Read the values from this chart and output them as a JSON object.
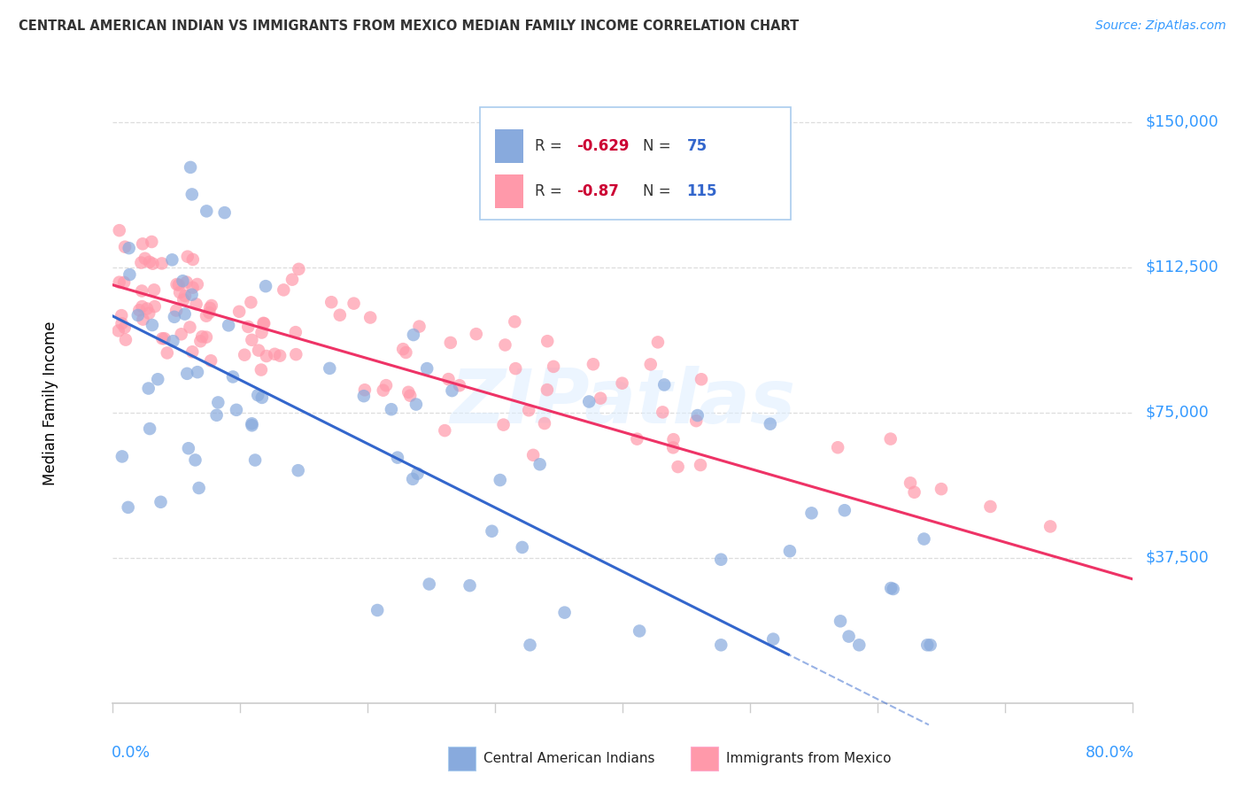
{
  "title": "CENTRAL AMERICAN INDIAN VS IMMIGRANTS FROM MEXICO MEDIAN FAMILY INCOME CORRELATION CHART",
  "source": "Source: ZipAtlas.com",
  "ylabel": "Median Family Income",
  "xmin": 0.0,
  "xmax": 0.8,
  "ymin": 0,
  "ymax": 155000,
  "watermark": "ZIPatlas",
  "blue_color": "#88AADD",
  "pink_color": "#FF99AA",
  "blue_line_color": "#3366CC",
  "pink_line_color": "#EE3366",
  "R_blue": -0.629,
  "N_blue": 75,
  "R_pink": -0.87,
  "N_pink": 115,
  "ytick_vals": [
    37500,
    75000,
    112500,
    150000
  ],
  "ytick_labels": [
    "$37,500",
    "$75,000",
    "$112,500",
    "$150,000"
  ],
  "legend_R_color": "#CC0033",
  "legend_N_color": "#3366CC",
  "title_color": "#333333",
  "source_color": "#3399FF",
  "axis_label_color": "#000000",
  "tick_label_color": "#3399FF",
  "grid_color": "#DDDDDD",
  "spine_color": "#CCCCCC",
  "watermark_color": "#DDEEFF"
}
